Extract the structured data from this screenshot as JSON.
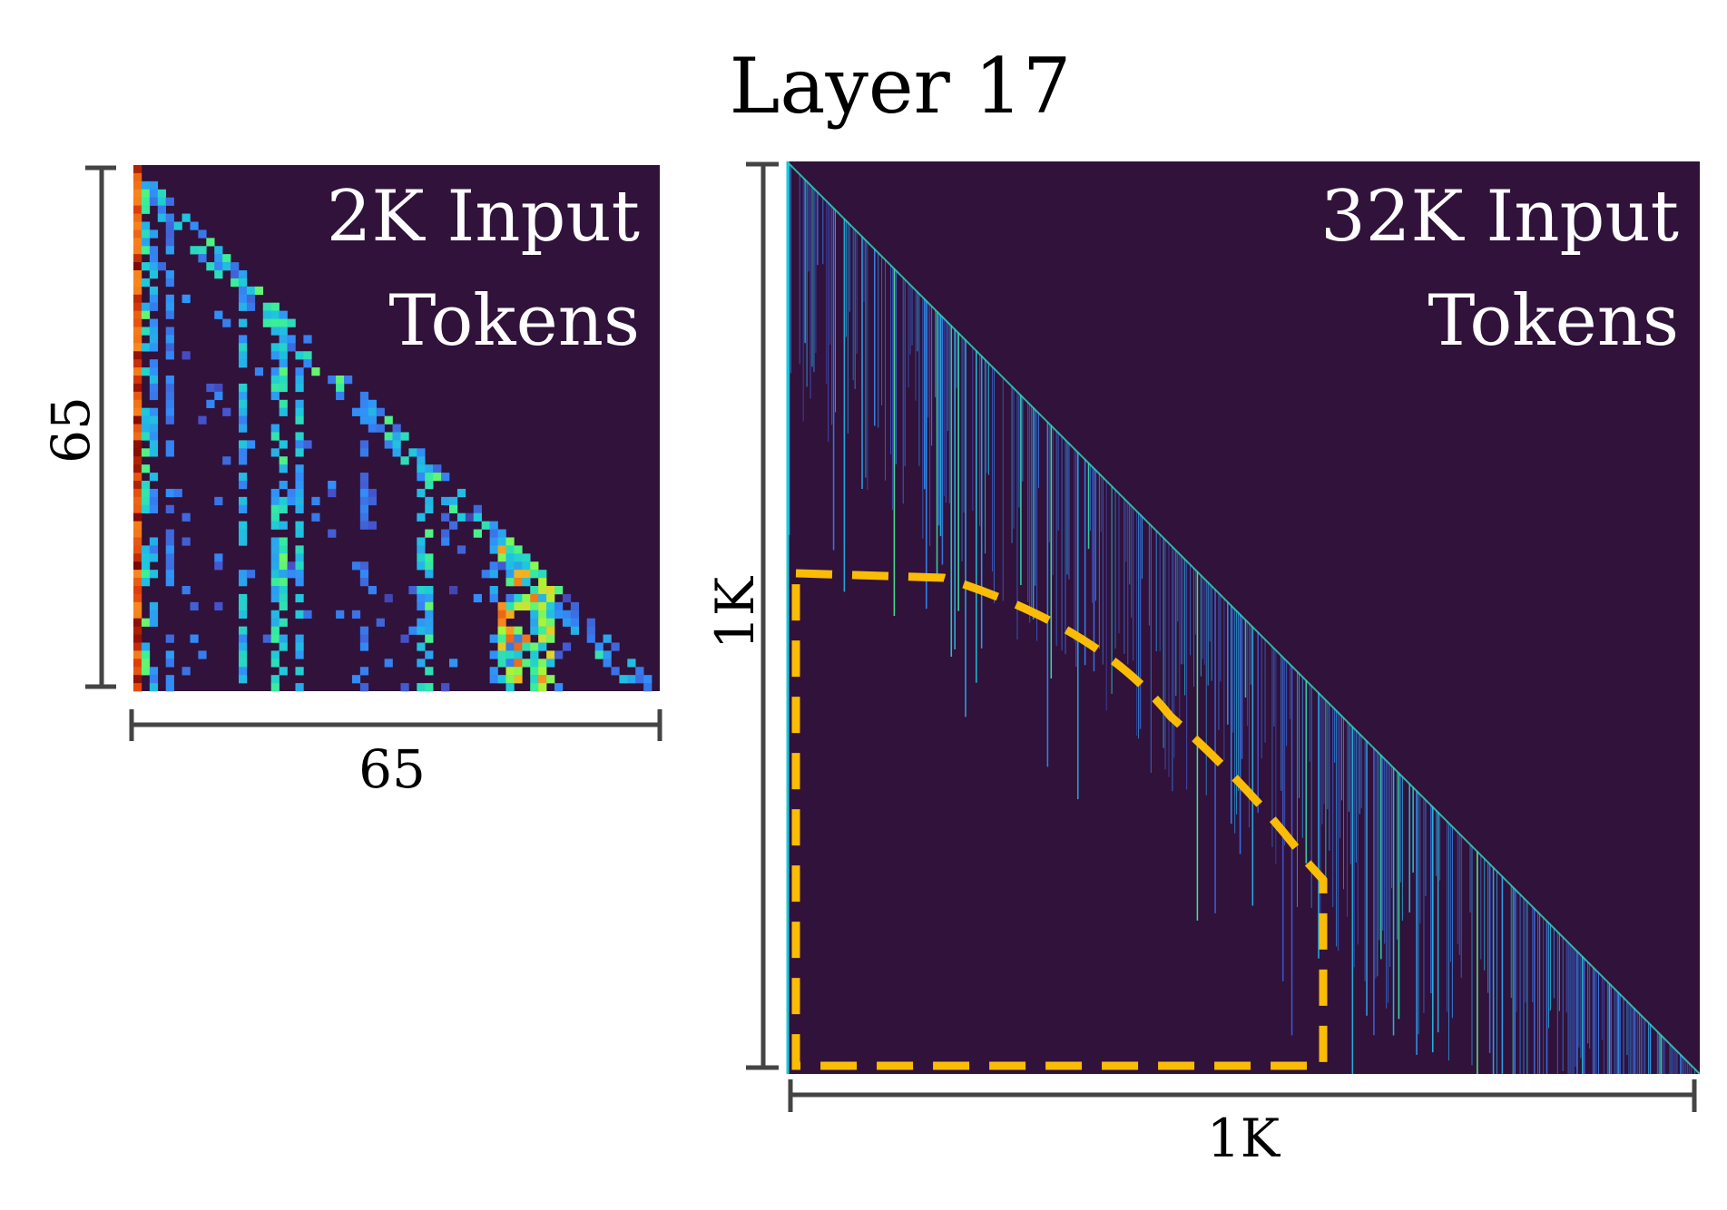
{
  "figure": {
    "title": "Layer 17"
  },
  "colors": {
    "background_cell": "#30123b",
    "bracket": "#444444",
    "highlight_dash": "#fbbc05",
    "panel_text": "#ffffff",
    "colormap": "turbo"
  },
  "chart_data": [
    {
      "type": "heatmap",
      "id": "small",
      "label_line1": "2K Input",
      "label_line2": "Tokens",
      "x_dim_label": "65",
      "y_dim_label": "65",
      "size": 65,
      "mask": "lower-triangular",
      "note_values": "normalized attention weight 0-1 (estimated)",
      "strong_columns": [
        {
          "col": 0,
          "value": 0.92
        },
        {
          "col": 1,
          "value": 0.55
        },
        {
          "col": 2,
          "value": 0.4
        },
        {
          "col": 4,
          "value": 0.32
        },
        {
          "col": 13,
          "value": 0.45
        },
        {
          "col": 17,
          "value": 0.5
        },
        {
          "col": 18,
          "value": 0.55
        },
        {
          "col": 20,
          "value": 0.45
        },
        {
          "col": 28,
          "value": 0.3
        },
        {
          "col": 35,
          "value": 0.45
        },
        {
          "col": 36,
          "value": 0.55
        },
        {
          "col": 44,
          "value": 0.35
        },
        {
          "col": 46,
          "value": 0.4
        },
        {
          "col": 49,
          "value": 0.6
        },
        {
          "col": 50,
          "value": 0.65
        }
      ]
    },
    {
      "type": "heatmap",
      "id": "large",
      "label_line1": "32K Input",
      "label_line2": "Tokens",
      "x_dim_label": "1K",
      "y_dim_label": "1K",
      "size": 1024,
      "mask": "lower-triangular",
      "note_values": "sparse attention concentrated near the diagonal; far-from-diagonal region (highlighted) is near zero"
    }
  ]
}
